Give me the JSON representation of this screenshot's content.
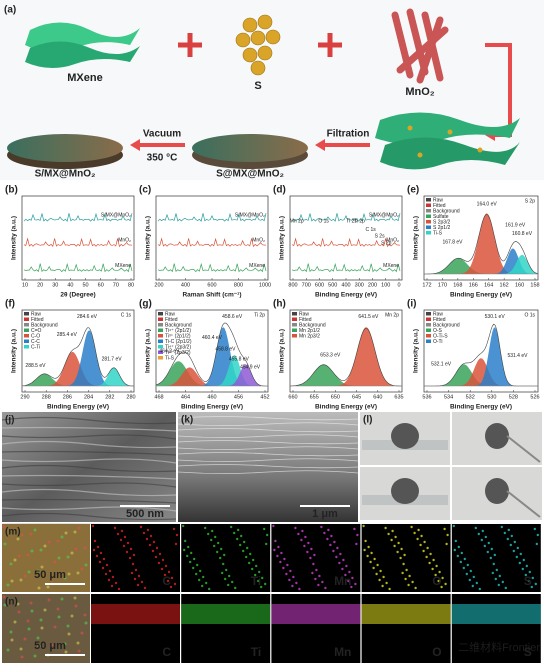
{
  "schematic": {
    "label": "(a)",
    "mxene": "MXene",
    "s": "S",
    "mno2": "MnO₂",
    "vacuum": "Vacuum",
    "temp": "350 °C",
    "filtration": "Filtration",
    "product1": "S/MX@MnO₂",
    "product2": "S@MX@MnO₂"
  },
  "plots": {
    "b": {
      "label": "(b)",
      "xlabel": "2θ (Degree)",
      "ylabel": "Intensity (a.u.)",
      "xticks": [
        10,
        20,
        30,
        40,
        50,
        60,
        70,
        80
      ],
      "series": [
        {
          "name": "S/MX@MnO₂",
          "color": "#2a9d9d"
        },
        {
          "name": "MnO₂",
          "color": "#d9533b"
        },
        {
          "name": "MXene",
          "color": "#3aa35b"
        }
      ]
    },
    "c": {
      "label": "(c)",
      "xlabel": "Raman Shift (cm⁻¹)",
      "ylabel": "Intensity (a.u.)",
      "xticks": [
        200,
        400,
        600,
        800,
        1000
      ],
      "series": [
        {
          "name": "S/MX@MnO₂",
          "color": "#2a9d9d"
        },
        {
          "name": "MnO₂",
          "color": "#d9533b"
        },
        {
          "name": "MXene",
          "color": "#3aa35b"
        }
      ]
    },
    "d": {
      "label": "(d)",
      "xlabel": "Binding Energy (eV)",
      "ylabel": "Intensity (a.u.)",
      "xticks": [
        800,
        700,
        600,
        500,
        400,
        300,
        200,
        100,
        0
      ],
      "series": [
        {
          "name": "S/MX@MnO₂",
          "color": "#2a9d9d"
        },
        {
          "name": "MnO₂",
          "color": "#d9533b"
        },
        {
          "name": "MXene",
          "color": "#3aa35b"
        }
      ],
      "annotations": [
        "Mn 2p",
        "O 1s",
        "Ti 2s",
        "Ti 2p",
        "C 1s",
        "S 2s",
        "S 2p"
      ]
    },
    "e": {
      "label": "(e)",
      "title": "S 2p",
      "xlabel": "Binding Energy (eV)",
      "ylabel": "Intensity (a.u.)",
      "xticks": [
        172,
        170,
        168,
        166,
        164,
        162,
        160,
        158
      ],
      "legend": [
        "Raw",
        "Fitted",
        "Background",
        "Sulfate",
        "S 2p3/2",
        "S 2p1/2",
        "Ti-S"
      ],
      "annotations": [
        "164.0 eV",
        "161.9 eV",
        "160.8 eV",
        "167.8 eV"
      ]
    },
    "f": {
      "label": "(f)",
      "title": "C 1s",
      "xlabel": "Binding Energy (eV)",
      "ylabel": "Intensity (a.u.)",
      "xticks": [
        290,
        288,
        286,
        284,
        282,
        280
      ],
      "legend": [
        "Raw",
        "Fitted",
        "Background",
        "C=O",
        "C-O",
        "C-C",
        "C-Ti"
      ],
      "annotations": [
        "284.6 eV",
        "285.4 eV",
        "288.5 eV",
        "281.7 eV"
      ]
    },
    "g": {
      "label": "(g)",
      "title": "Ti 2p",
      "xlabel": "Binding Energy (eV)",
      "ylabel": "Intensity (a.u.)",
      "xticks": [
        468,
        464,
        460,
        456,
        452
      ],
      "legend": [
        "Raw",
        "Fitted",
        "Background",
        "Ti⁴⁺ (2p1/2)",
        "Ti³⁺ (2p1/2)",
        "Ti-C (2p1/2)",
        "Ti⁴⁺ (2p3/2)",
        "Ti³⁺ (2p3/2)",
        "Ti-S"
      ],
      "annotations": [
        "458.6 eV",
        "464.2 eV",
        "460.4 eV",
        "458.8 eV",
        "455.8 eV",
        "454.9 eV"
      ]
    },
    "h": {
      "label": "(h)",
      "title": "Mn 2p",
      "xlabel": "Binding Energy (eV)",
      "ylabel": "Intensity (a.u.)",
      "xticks": [
        660,
        655,
        650,
        645,
        640,
        635
      ],
      "legend": [
        "Raw",
        "Fitted",
        "Background",
        "Mn 2p1/2",
        "Mn 2p3/2"
      ],
      "annotations": [
        "641.5 eV",
        "653.3 eV"
      ]
    },
    "i": {
      "label": "(i)",
      "title": "O 1s",
      "xlabel": "Binding Energy (eV)",
      "ylabel": "Intensity (a.u.)",
      "xticks": [
        536,
        534,
        532,
        530,
        528,
        526
      ],
      "legend": [
        "Raw",
        "Fitted",
        "Background",
        "O-S",
        "O-Ti-S",
        "O-Ti"
      ],
      "annotations": [
        "530.1 eV",
        "532.1 eV",
        "531.4 eV"
      ]
    }
  },
  "images": {
    "j": {
      "label": "(j)",
      "scale": "500 nm"
    },
    "k": {
      "label": "(k)",
      "scale": "1 μm"
    },
    "l": {
      "label": "(l)"
    }
  },
  "mapping": {
    "m": {
      "label": "(m)",
      "scale": "50 μm"
    },
    "n": {
      "label": "(n)",
      "scale": "50 μm"
    },
    "elements": [
      "C",
      "Ti",
      "Mn",
      "O",
      "S"
    ]
  },
  "watermark": "二维材料Frontier"
}
